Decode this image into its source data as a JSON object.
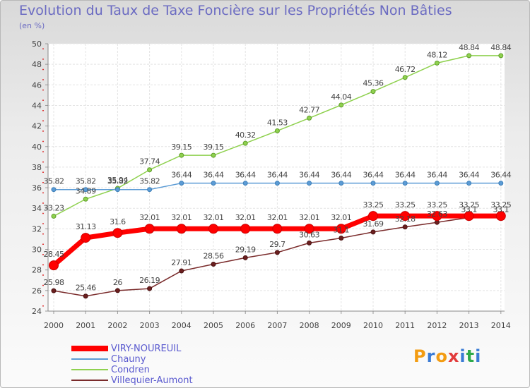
{
  "title": "Evolution du Taux de Taxe Foncière sur les Propriétés Non Bâties",
  "subtitle": "(en %)",
  "logo": "Proxiti",
  "chart_data": {
    "type": "line",
    "title": "Evolution du Taux de Taxe Foncière sur les Propriétés Non Bâties",
    "ylabel": "(en %)",
    "xlabel": "",
    "x": [
      "2000",
      "2001",
      "2002",
      "2003",
      "2004",
      "2005",
      "2006",
      "2007",
      "2008",
      "2009",
      "2010",
      "2011",
      "2012",
      "2013",
      "2014"
    ],
    "ylim": [
      24,
      50
    ],
    "yticks": [
      24,
      26,
      28,
      30,
      32,
      34,
      36,
      38,
      40,
      42,
      44,
      46,
      48,
      50
    ],
    "grid": true,
    "legend_position": "bottom-left",
    "series": [
      {
        "name": "VIRY-NOUREUIL",
        "color": "#ff0000",
        "values": [
          28.45,
          31.13,
          31.6,
          32.01,
          32.01,
          32.01,
          32.01,
          32.01,
          32.01,
          32.01,
          33.25,
          33.25,
          33.25,
          33.25,
          33.25
        ],
        "labels": [
          "28.45",
          "31.13",
          "31.6",
          "32.01",
          "32.01",
          "32.01",
          "32.01",
          "32.01",
          "32.01",
          "32.01",
          "33.25",
          "33.25",
          "33.25",
          "33.25",
          "33.25"
        ]
      },
      {
        "name": "Chauny",
        "color": "#5b9bd5",
        "values": [
          35.82,
          35.82,
          35.82,
          35.82,
          36.44,
          36.44,
          36.44,
          36.44,
          36.44,
          36.44,
          36.44,
          36.44,
          36.44,
          36.44,
          36.44
        ],
        "labels": [
          "35.82",
          "35.82",
          "35.82",
          "35.82",
          "36.44",
          "36.44",
          "36.44",
          "36.44",
          "36.44",
          "36.44",
          "36.44",
          "36.44",
          "36.44",
          "36.44",
          "36.44"
        ]
      },
      {
        "name": "Condren",
        "color": "#8fd14f",
        "values": [
          33.23,
          34.89,
          35.94,
          37.74,
          39.15,
          39.15,
          40.32,
          41.53,
          42.77,
          44.04,
          45.36,
          46.72,
          48.12,
          48.84,
          48.84
        ],
        "labels": [
          "33.23",
          "34.89",
          "35.94",
          "37.74",
          "39.15",
          "39.15",
          "40.32",
          "41.53",
          "42.77",
          "44.04",
          "45.36",
          "46.72",
          "48.12",
          "48.84",
          "48.84"
        ]
      },
      {
        "name": "Villequier-Aumont",
        "color": "#7a2b2b",
        "values": [
          25.98,
          25.46,
          26,
          26.19,
          27.91,
          28.56,
          29.19,
          29.7,
          30.63,
          31.1,
          31.69,
          32.18,
          32.63,
          33.1,
          33.1
        ],
        "labels": [
          "25.98",
          "25.46",
          "26",
          "26.19",
          "27.91",
          "28.56",
          "29.19",
          "29.7",
          "30.63",
          "31.1",
          "31.69",
          "32.18",
          "32.63",
          "33.1",
          "33.1"
        ]
      }
    ]
  }
}
